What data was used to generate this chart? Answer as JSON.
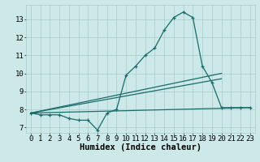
{
  "title": "",
  "xlabel": "Humidex (Indice chaleur)",
  "bg_color": "#cce8e8",
  "line_color": "#1a6b6b",
  "grid_color": "#aacccc",
  "xlim": [
    -0.5,
    23.5
  ],
  "ylim": [
    6.7,
    13.8
  ],
  "yticks": [
    7,
    8,
    9,
    10,
    11,
    12,
    13
  ],
  "xticks": [
    0,
    1,
    2,
    3,
    4,
    5,
    6,
    7,
    8,
    9,
    10,
    11,
    12,
    13,
    14,
    15,
    16,
    17,
    18,
    19,
    20,
    21,
    22,
    23
  ],
  "line1_x": [
    0,
    1,
    2,
    3,
    4,
    5,
    6,
    7,
    8,
    9,
    10,
    11,
    12,
    13,
    14,
    15,
    16,
    17,
    18,
    19,
    20,
    21,
    22,
    23
  ],
  "line1_y": [
    7.8,
    7.7,
    7.7,
    7.7,
    7.5,
    7.4,
    7.4,
    6.85,
    7.8,
    8.0,
    9.9,
    10.4,
    11.0,
    11.4,
    12.4,
    13.1,
    13.4,
    13.1,
    10.4,
    9.5,
    8.1,
    8.1,
    8.1,
    8.1
  ],
  "line2_x": [
    0,
    23
  ],
  "line2_y": [
    7.8,
    8.1
  ],
  "line3_x": [
    0,
    20
  ],
  "line3_y": [
    7.8,
    10.0
  ],
  "line4_x": [
    0,
    20
  ],
  "line4_y": [
    7.8,
    9.7
  ],
  "font_family": "monospace",
  "xlabel_fontsize": 7.5,
  "tick_fontsize": 6.5,
  "lw": 0.9,
  "marker_size": 3,
  "figsize": [
    3.2,
    2.0
  ],
  "dpi": 100
}
